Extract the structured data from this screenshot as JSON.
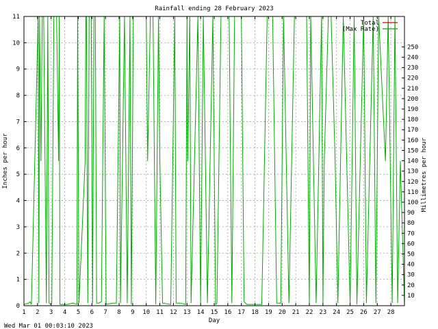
{
  "chart_data": {
    "type": "line",
    "title": "Rainfall ending 28 February 2023",
    "xlabel": "Day",
    "ylabel": "Inches per hour",
    "ylabel_right": "Millimetres per hour",
    "xlim": [
      1,
      29
    ],
    "ylim": [
      0,
      11
    ],
    "ylim_right": [
      0,
      279.4
    ],
    "x_ticks": [
      1,
      2,
      3,
      4,
      5,
      6,
      7,
      8,
      9,
      10,
      11,
      12,
      13,
      14,
      15,
      16,
      17,
      18,
      19,
      20,
      21,
      22,
      23,
      24,
      25,
      26,
      27,
      28
    ],
    "y_ticks": [
      0,
      1,
      2,
      3,
      4,
      5,
      6,
      7,
      8,
      9,
      10,
      11
    ],
    "y_ticks_right": [
      10,
      20,
      30,
      40,
      50,
      60,
      70,
      80,
      90,
      100,
      110,
      120,
      130,
      140,
      150,
      160,
      170,
      180,
      190,
      200,
      210,
      220,
      230,
      240,
      250
    ],
    "grid": true,
    "legend_position": "top-right",
    "series": [
      {
        "name": "Total",
        "color": "#cc0000",
        "values": []
      },
      {
        "name": "(Max Rate)",
        "color": "#00aa00",
        "x": [
          1,
          1.35,
          1.45,
          1.55,
          2.05,
          2.1,
          2.15,
          2.25,
          2.35,
          2.45,
          2.55,
          2.65,
          2.75,
          2.85,
          2.95,
          3.05,
          3.2,
          3.4,
          3.55,
          3.6,
          3.65,
          3.8,
          3.9,
          4.2,
          4.6,
          4.9,
          4.95,
          5.05,
          5.5,
          5.55,
          5.6,
          5.7,
          5.8,
          5.85,
          5.9,
          5.95,
          6.05,
          6.15,
          6.25,
          6.35,
          6.5,
          6.7,
          6.9,
          7.05,
          7.5,
          7.8,
          8.05,
          8.1,
          8.4,
          8.6,
          8.8,
          8.9,
          9.05,
          9.2,
          9.3,
          9.5,
          9.6,
          9.7,
          9.8,
          9.9,
          10.0,
          10.1,
          10.3,
          10.5,
          10.7,
          10.9,
          11.0,
          11.2,
          11.8,
          12.1,
          12.2,
          12.5,
          12.9,
          13.0,
          13.05,
          13.2,
          13.3,
          13.8,
          14.0,
          14.2,
          14.5,
          14.9,
          15.1,
          15.2,
          15.5,
          16.1,
          16.3,
          16.5,
          16.6,
          16.7,
          16.8,
          16.9,
          17.0,
          17.2,
          17.4,
          18.5,
          18.9,
          19.1,
          19.3,
          19.6,
          19.9,
          20.1,
          20.5,
          20.9,
          21.2,
          21.4,
          21.6,
          21.8,
          22.0,
          22.1,
          22.5,
          22.9,
          23.0,
          23.1,
          23.4,
          23.6,
          23.9,
          24.1,
          24.5,
          25.0,
          25.3,
          25.5,
          26.0,
          26.2,
          26.7,
          26.9,
          27.1,
          27.6,
          27.8,
          28.1,
          28.3,
          28.5,
          28.7,
          29.0
        ],
        "y": [
          0.05,
          0.1,
          0.15,
          0.05,
          11,
          0.1,
          11,
          5.5,
          11,
          11,
          5.5,
          0.1,
          11,
          0.1,
          0.05,
          0.1,
          11,
          11,
          5.5,
          11,
          0.05,
          0.05,
          0.05,
          0.05,
          0.1,
          0.05,
          11,
          0.1,
          5.5,
          11,
          11,
          0.1,
          11,
          11,
          11,
          11,
          0.1,
          11,
          11,
          0.1,
          0.1,
          0.15,
          11,
          0.05,
          0.1,
          0.1,
          11,
          0.1,
          11,
          0.1,
          11,
          0.05,
          11,
          11,
          11,
          11,
          11,
          11,
          11,
          11,
          11,
          5.5,
          11,
          11,
          0.05,
          11,
          5.5,
          0.1,
          0.05,
          11,
          0.1,
          0.1,
          0.05,
          11,
          5.5,
          11,
          0.1,
          11,
          0.1,
          11,
          0.1,
          11,
          0.05,
          0.1,
          11,
          11,
          0.1,
          11,
          11,
          11,
          11,
          11,
          11,
          0.15,
          0.05,
          0.05,
          11,
          11,
          11,
          0.1,
          0.1,
          11,
          0.1,
          11,
          11,
          11,
          11,
          11,
          0.05,
          11,
          0.1,
          11,
          0.1,
          5.5,
          11,
          11,
          5.5,
          0.1,
          11,
          0.05,
          11,
          0.05,
          11,
          0.1,
          11,
          0.1,
          11,
          5.5,
          11,
          0.1,
          11,
          0.1,
          5.5,
          0.05
        ]
      }
    ],
    "footer_timestamp": "Wed Mar 01 00:03:10 2023"
  }
}
